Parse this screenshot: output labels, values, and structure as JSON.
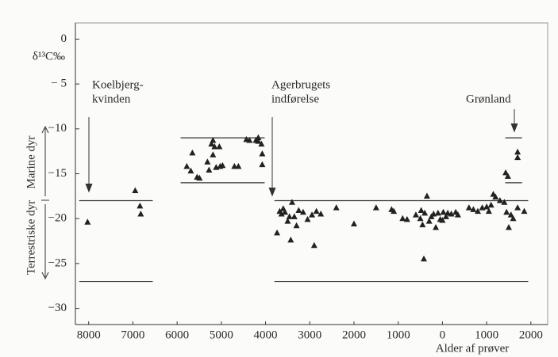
{
  "chart_data": {
    "type": "scatter",
    "ylabel": "δ¹³C‰",
    "xlabel": "Alder af prøver",
    "side_labels": [
      "Marine dyr",
      "Terrestriske dyr"
    ],
    "annotations": [
      {
        "lines": [
          "Koelbjerg-",
          "kvinden"
        ]
      },
      {
        "lines": [
          "Agerbrugets",
          "indførelse"
        ]
      },
      {
        "lines": [
          "Grønland"
        ]
      }
    ],
    "xlim": [
      -8300,
      2380
    ],
    "ylim": [
      -31.8,
      1.8
    ],
    "xticks": [
      {
        "value": -8000,
        "label": "8000"
      },
      {
        "value": -7000,
        "label": "7000"
      },
      {
        "value": -6000,
        "label": "6000"
      },
      {
        "value": -5000,
        "label": "5000"
      },
      {
        "value": -4000,
        "label": "4000"
      },
      {
        "value": -3000,
        "label": "3000"
      },
      {
        "value": -2000,
        "label": "2000"
      },
      {
        "value": -1000,
        "label": "1000"
      },
      0,
      1000,
      2000
    ],
    "yticks": [
      0,
      {
        "value": -5,
        "label": "− 5"
      },
      {
        "value": -10,
        "label": "−10"
      },
      {
        "value": -15,
        "label": "−15"
      },
      {
        "value": -20,
        "label": "−20"
      },
      {
        "value": -25,
        "label": "−25"
      },
      {
        "value": -30,
        "label": "−30"
      }
    ],
    "color": "#222222",
    "reference_lines": [
      {
        "y": -18,
        "x": [
          -8215,
          -6550
        ]
      },
      {
        "y": -27,
        "x": [
          -8215,
          -6550
        ]
      },
      {
        "y": -11,
        "x": [
          -5920,
          -4020
        ]
      },
      {
        "y": -16,
        "x": [
          -5920,
          -4020
        ]
      },
      {
        "y": -18,
        "x": [
          -3800,
          1940
        ]
      },
      {
        "y": -27,
        "x": [
          -3800,
          1940
        ]
      },
      {
        "y": -11,
        "x": [
          1420,
          1800
        ]
      },
      {
        "y": -16,
        "x": [
          1420,
          1800
        ]
      }
    ],
    "x": [
      -8025,
      -6948,
      -6840,
      -6822,
      -5655,
      -5781,
      -5690,
      -5548,
      -5494,
      -5314,
      -5278,
      -5224,
      -5153,
      -5117,
      -5189,
      -5027,
      -4973,
      -5045,
      -5189,
      -4704,
      -4614,
      -4434,
      -4363,
      -4219,
      -4165,
      -4165,
      -4093,
      -4075,
      -4075,
      -3740,
      -3680,
      -3640,
      -3600,
      -3560,
      -3500,
      -3460,
      -3430,
      -3400,
      -3350,
      -3300,
      -3250,
      -3150,
      -3050,
      -2950,
      -2900,
      -2850,
      -2750,
      -2400,
      -2000,
      -1500,
      -1150,
      -1100,
      -900,
      -800,
      -600,
      -500,
      -480,
      -450,
      -420,
      -400,
      -350,
      -300,
      -250,
      -200,
      -150,
      -100,
      -50,
      0,
      20,
      80,
      120,
      200,
      300,
      350,
      600,
      700,
      800,
      900,
      1000,
      1050,
      1100,
      1150,
      1200,
      1300,
      1400,
      1450,
      1500,
      1550,
      1600,
      1700,
      1850,
      1430,
      1480,
      1700,
      1700
    ],
    "values": [
      -20.4,
      -16.9,
      -18.6,
      -19.5,
      -12.7,
      -14.2,
      -14.7,
      -15.4,
      -15.5,
      -13.7,
      -14.6,
      -11.7,
      -12.0,
      -14.3,
      -12.9,
      -14.2,
      -14.1,
      -12.0,
      -11.3,
      -14.2,
      -14.2,
      -11.2,
      -11.3,
      -11.3,
      -11.0,
      -11.4,
      -11.7,
      -12.8,
      -14.0,
      -21.6,
      -19.2,
      -19.5,
      -18.9,
      -19.3,
      -20.3,
      -19.8,
      -22.4,
      -18.2,
      -19.8,
      -20.8,
      -19.1,
      -19.3,
      -20.1,
      -19.6,
      -23.0,
      -19.2,
      -19.5,
      -18.8,
      -20.6,
      -18.8,
      -19.0,
      -19.2,
      -20.0,
      -20.1,
      -19.6,
      -20.0,
      -19.1,
      -20.7,
      -24.5,
      -19.4,
      -17.5,
      -20.3,
      -19.8,
      -19.5,
      -21.0,
      -19.4,
      -20.1,
      -20.2,
      -19.3,
      -19.8,
      -19.4,
      -19.5,
      -19.3,
      -19.6,
      -18.8,
      -19.0,
      -19.2,
      -18.8,
      -18.7,
      -19.2,
      -18.5,
      -17.3,
      -17.6,
      -18.0,
      -18.2,
      -19.3,
      -21.0,
      -19.6,
      -20.0,
      -18.8,
      -19.2,
      -14.9,
      -15.3,
      -12.6,
      -13.2
    ]
  }
}
